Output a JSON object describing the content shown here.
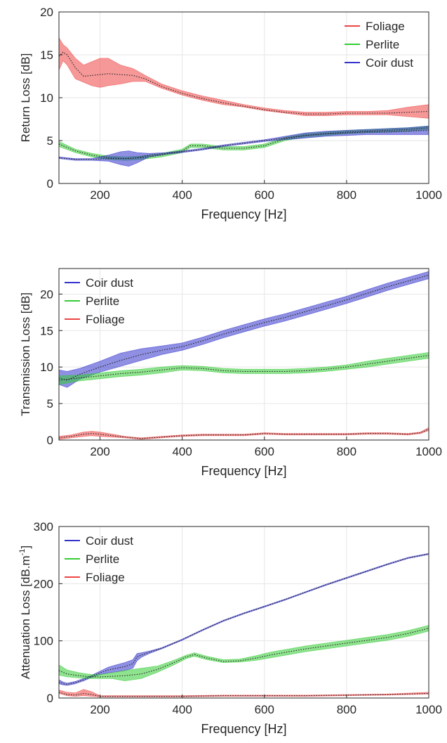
{
  "chart_data": [
    {
      "type": "area",
      "xlabel": "Frequency [Hz]",
      "ylabel": "Return Loss [dB]",
      "xlim": [
        100,
        1000
      ],
      "ylim": [
        0,
        20
      ],
      "xticks": [
        200,
        400,
        600,
        800,
        1000
      ],
      "yticks": [
        0,
        5,
        10,
        15,
        20
      ],
      "grid": true,
      "legend_position": "top-right",
      "series": [
        {
          "name": "Foliage",
          "color": "#ee4444",
          "x": [
            100,
            110,
            120,
            140,
            160,
            180,
            200,
            220,
            250,
            280,
            310,
            350,
            400,
            450,
            500,
            550,
            600,
            650,
            700,
            750,
            800,
            850,
            900,
            950,
            1000
          ],
          "mean": [
            14.8,
            15.3,
            15.0,
            13.5,
            12.5,
            12.6,
            12.7,
            12.8,
            12.7,
            12.6,
            12.2,
            11.3,
            10.5,
            9.9,
            9.4,
            9.0,
            8.6,
            8.3,
            8.1,
            8.1,
            8.2,
            8.2,
            8.2,
            8.3,
            8.4
          ],
          "lower": [
            13.2,
            14.3,
            13.8,
            12.2,
            11.8,
            11.4,
            11.2,
            11.4,
            11.6,
            11.9,
            11.9,
            11.1,
            10.3,
            9.7,
            9.2,
            8.9,
            8.5,
            8.2,
            7.9,
            7.9,
            8.0,
            8.0,
            8.0,
            7.8,
            7.6
          ],
          "upper": [
            17.0,
            16.2,
            15.8,
            14.6,
            13.8,
            14.2,
            14.6,
            14.6,
            13.8,
            13.4,
            12.6,
            11.6,
            10.8,
            10.2,
            9.7,
            9.2,
            8.8,
            8.5,
            8.3,
            8.3,
            8.4,
            8.4,
            8.5,
            8.9,
            9.2
          ]
        },
        {
          "name": "Perlite",
          "color": "#33cc33",
          "x": [
            100,
            140,
            180,
            220,
            260,
            300,
            350,
            400,
            420,
            450,
            500,
            550,
            600,
            650,
            700,
            750,
            800,
            850,
            900,
            950,
            1000
          ],
          "mean": [
            4.6,
            3.8,
            3.3,
            3.0,
            2.9,
            3.0,
            3.3,
            3.8,
            4.4,
            4.4,
            4.1,
            4.1,
            4.4,
            5.2,
            5.6,
            5.8,
            6.0,
            6.1,
            6.2,
            6.3,
            6.5
          ],
          "lower": [
            4.3,
            3.6,
            3.1,
            2.8,
            2.7,
            2.8,
            3.1,
            3.6,
            4.2,
            4.2,
            3.9,
            3.9,
            4.2,
            5.0,
            5.4,
            5.6,
            5.8,
            5.9,
            6.0,
            6.1,
            6.3
          ],
          "upper": [
            4.9,
            4.0,
            3.5,
            3.2,
            3.1,
            3.2,
            3.5,
            4.0,
            4.6,
            4.6,
            4.3,
            4.3,
            4.6,
            5.4,
            5.8,
            6.0,
            6.2,
            6.3,
            6.4,
            6.5,
            6.7
          ]
        },
        {
          "name": "Coir dust",
          "color": "#3333cc",
          "x": [
            100,
            140,
            180,
            220,
            250,
            270,
            290,
            320,
            360,
            400,
            450,
            500,
            550,
            600,
            650,
            700,
            750,
            800,
            850,
            900,
            950,
            1000
          ],
          "mean": [
            3.0,
            2.8,
            2.8,
            2.9,
            2.9,
            2.9,
            3.0,
            3.3,
            3.5,
            3.7,
            4.0,
            4.4,
            4.7,
            5.0,
            5.3,
            5.6,
            5.8,
            5.9,
            6.0,
            6.0,
            6.1,
            6.2
          ],
          "lower": [
            2.9,
            2.7,
            2.7,
            2.6,
            2.2,
            2.0,
            2.4,
            3.1,
            3.4,
            3.6,
            3.9,
            4.3,
            4.6,
            4.9,
            5.1,
            5.3,
            5.5,
            5.6,
            5.7,
            5.7,
            5.7,
            5.7
          ],
          "upper": [
            3.1,
            2.9,
            2.9,
            3.3,
            3.7,
            3.8,
            3.6,
            3.5,
            3.6,
            3.8,
            4.1,
            4.5,
            4.8,
            5.1,
            5.5,
            5.9,
            6.1,
            6.2,
            6.3,
            6.4,
            6.5,
            6.7
          ]
        }
      ]
    },
    {
      "type": "area",
      "xlabel": "Frequency [Hz]",
      "ylabel": "Transmission Loss [dB]",
      "xlim": [
        100,
        1000
      ],
      "ylim": [
        0,
        23.5
      ],
      "xticks": [
        200,
        400,
        600,
        800,
        1000
      ],
      "yticks": [
        0,
        5,
        10,
        15,
        20
      ],
      "grid": true,
      "legend_position": "top-left",
      "series": [
        {
          "name": "Coir dust",
          "color": "#3333cc",
          "x": [
            100,
            120,
            150,
            200,
            250,
            300,
            350,
            400,
            450,
            500,
            550,
            600,
            650,
            700,
            750,
            800,
            850,
            900,
            950,
            1000
          ],
          "mean": [
            8.5,
            8.2,
            9.0,
            10.0,
            10.9,
            11.7,
            12.3,
            12.8,
            13.6,
            14.5,
            15.3,
            16.1,
            16.8,
            17.6,
            18.4,
            19.2,
            20.1,
            21.0,
            21.8,
            22.6
          ],
          "lower": [
            7.6,
            7.2,
            8.3,
            9.3,
            10.1,
            10.9,
            11.7,
            12.3,
            13.1,
            14.0,
            14.8,
            15.6,
            16.3,
            17.1,
            17.9,
            18.7,
            19.6,
            20.5,
            21.3,
            22.1
          ],
          "upper": [
            9.6,
            9.4,
            9.8,
            10.8,
            11.9,
            12.5,
            12.9,
            13.3,
            14.1,
            15.0,
            15.8,
            16.6,
            17.3,
            18.1,
            18.9,
            19.7,
            20.6,
            21.5,
            22.3,
            23.1
          ]
        },
        {
          "name": "Perlite",
          "color": "#33cc33",
          "x": [
            100,
            150,
            200,
            250,
            300,
            350,
            400,
            450,
            500,
            550,
            600,
            650,
            700,
            750,
            800,
            850,
            900,
            950,
            1000
          ],
          "mean": [
            8.2,
            8.5,
            8.8,
            9.1,
            9.3,
            9.6,
            9.9,
            9.8,
            9.5,
            9.4,
            9.4,
            9.4,
            9.5,
            9.7,
            10.0,
            10.4,
            10.8,
            11.2,
            11.6
          ],
          "lower": [
            7.6,
            8.1,
            8.4,
            8.7,
            8.9,
            9.2,
            9.6,
            9.5,
            9.2,
            9.1,
            9.1,
            9.1,
            9.2,
            9.4,
            9.7,
            10.0,
            10.4,
            10.8,
            11.2
          ],
          "upper": [
            8.8,
            8.9,
            9.2,
            9.5,
            9.7,
            10.0,
            10.2,
            10.1,
            9.8,
            9.7,
            9.7,
            9.7,
            9.8,
            10.0,
            10.3,
            10.8,
            11.2,
            11.6,
            12.0
          ]
        },
        {
          "name": "Foliage",
          "color": "#ee4444",
          "x": [
            100,
            130,
            160,
            180,
            200,
            230,
            260,
            300,
            350,
            400,
            450,
            500,
            550,
            600,
            650,
            700,
            750,
            800,
            850,
            900,
            950,
            980,
            1000
          ],
          "mean": [
            0.3,
            0.5,
            0.8,
            0.9,
            0.8,
            0.6,
            0.4,
            0.2,
            0.4,
            0.6,
            0.7,
            0.7,
            0.7,
            0.9,
            0.8,
            0.8,
            0.8,
            0.8,
            0.9,
            0.9,
            0.8,
            1.0,
            1.5
          ],
          "lower": [
            0.1,
            0.3,
            0.5,
            0.6,
            0.5,
            0.4,
            0.3,
            0.1,
            0.3,
            0.5,
            0.6,
            0.6,
            0.6,
            0.8,
            0.7,
            0.7,
            0.7,
            0.7,
            0.8,
            0.8,
            0.7,
            0.9,
            1.3
          ],
          "upper": [
            0.5,
            0.7,
            1.1,
            1.2,
            1.1,
            0.8,
            0.5,
            0.3,
            0.5,
            0.7,
            0.8,
            0.8,
            0.8,
            1.0,
            0.9,
            0.9,
            0.9,
            0.9,
            1.0,
            1.0,
            0.9,
            1.1,
            1.7
          ]
        }
      ]
    },
    {
      "type": "area",
      "xlabel": "Frequency [Hz]",
      "ylabel": "Attenuation Loss [dB.m",
      "ylabel_sup": "-1",
      "ylabel_tail": "]",
      "xlim": [
        100,
        1000
      ],
      "ylim": [
        0,
        300
      ],
      "xticks": [
        200,
        400,
        600,
        800,
        1000
      ],
      "yticks": [
        0,
        100,
        200,
        300
      ],
      "grid": true,
      "legend_position": "top-left",
      "series": [
        {
          "name": "Coir dust",
          "color": "#3333cc",
          "x": [
            100,
            110,
            120,
            140,
            160,
            180,
            200,
            220,
            240,
            260,
            280,
            290,
            300,
            320,
            350,
            400,
            450,
            500,
            550,
            600,
            650,
            700,
            750,
            800,
            850,
            900,
            950,
            1000
          ],
          "mean": [
            28,
            25,
            24,
            27,
            32,
            38,
            44,
            49,
            52,
            55,
            60,
            72,
            75,
            80,
            87,
            102,
            119,
            135,
            148,
            160,
            172,
            185,
            198,
            210,
            222,
            234,
            245,
            252
          ],
          "lower": [
            25,
            23,
            22,
            25,
            30,
            36,
            41,
            44,
            46,
            48,
            52,
            65,
            71,
            78,
            86,
            101,
            118,
            134,
            147,
            159,
            171,
            184,
            197,
            209,
            221,
            233,
            244,
            251
          ],
          "upper": [
            32,
            28,
            26,
            29,
            34,
            40,
            47,
            54,
            58,
            62,
            67,
            78,
            79,
            82,
            88,
            103,
            120,
            136,
            149,
            161,
            173,
            186,
            199,
            211,
            223,
            235,
            246,
            253
          ]
        },
        {
          "name": "Perlite",
          "color": "#33cc33",
          "x": [
            100,
            120,
            150,
            180,
            200,
            230,
            260,
            300,
            340,
            380,
            410,
            430,
            460,
            500,
            540,
            580,
            620,
            660,
            700,
            750,
            800,
            850,
            900,
            950,
            1000
          ],
          "mean": [
            48,
            42,
            39,
            37,
            37,
            38,
            39,
            42,
            50,
            62,
            72,
            76,
            70,
            64,
            65,
            70,
            76,
            81,
            86,
            91,
            96,
            101,
            106,
            113,
            122
          ],
          "lower": [
            40,
            37,
            35,
            34,
            34,
            34,
            30,
            34,
            45,
            58,
            69,
            73,
            67,
            62,
            63,
            66,
            71,
            76,
            81,
            86,
            91,
            96,
            101,
            108,
            117
          ],
          "upper": [
            58,
            49,
            44,
            41,
            41,
            44,
            48,
            52,
            56,
            66,
            75,
            79,
            73,
            67,
            68,
            74,
            81,
            86,
            91,
            96,
            101,
            106,
            111,
            118,
            127
          ]
        },
        {
          "name": "Foliage",
          "color": "#ee4444",
          "x": [
            100,
            120,
            140,
            160,
            180,
            200,
            250,
            300,
            400,
            500,
            600,
            700,
            800,
            900,
            1000
          ],
          "mean": [
            10,
            6,
            5,
            8,
            6,
            3,
            3,
            3,
            3,
            4,
            4,
            4,
            5,
            6,
            8
          ],
          "lower": [
            8,
            4,
            3,
            4,
            3,
            2,
            2,
            2,
            2,
            3,
            3,
            3,
            4,
            5,
            7
          ],
          "upper": [
            14,
            10,
            9,
            15,
            11,
            4,
            4,
            4,
            4,
            5,
            5,
            5,
            6,
            7,
            10
          ]
        }
      ]
    }
  ]
}
